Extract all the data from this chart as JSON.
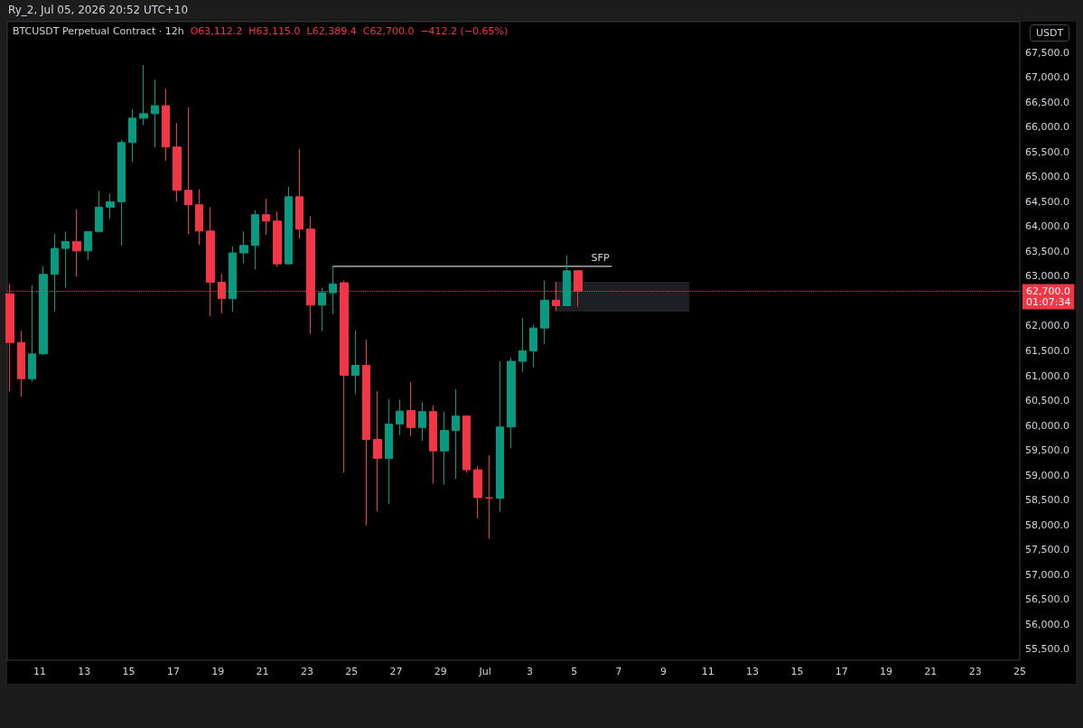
{
  "chart_data": {
    "type": "candlestick",
    "title": "Ry_2, Jul 05, 2026 20:52 UTC+10",
    "subtitle": "BTCUSDT Perpetual Contract · 12h",
    "ylabel": "USDT",
    "annotations": [
      "O63,112.2",
      "H63,115.0",
      "L62,389.4",
      "C62,700.0",
      "−412.2 (−0.65%)",
      {
        "text": "SFP",
        "x": "2026-07-06T04:00",
        "y": 63200
      }
    ],
    "x": [
      "2026-06-09T16:00",
      "2026-06-10T04:00",
      "2026-06-10T16:00",
      "2026-06-11T04:00",
      "2026-06-11T16:00",
      "2026-06-12T04:00",
      "2026-06-12T16:00",
      "2026-06-13T04:00",
      "2026-06-13T16:00",
      "2026-06-14T04:00",
      "2026-06-14T16:00",
      "2026-06-15T04:00",
      "2026-06-15T16:00",
      "2026-06-16T04:00",
      "2026-06-16T16:00",
      "2026-06-17T04:00",
      "2026-06-17T16:00",
      "2026-06-18T04:00",
      "2026-06-18T16:00",
      "2026-06-19T04:00",
      "2026-06-19T16:00",
      "2026-06-20T04:00",
      "2026-06-20T16:00",
      "2026-06-21T04:00",
      "2026-06-21T16:00",
      "2026-06-22T04:00",
      "2026-06-22T16:00",
      "2026-06-23T04:00",
      "2026-06-23T16:00",
      "2026-06-24T04:00",
      "2026-06-24T16:00",
      "2026-06-25T04:00",
      "2026-06-25T16:00",
      "2026-06-26T04:00",
      "2026-06-26T16:00",
      "2026-06-27T04:00",
      "2026-06-27T16:00",
      "2026-06-28T04:00",
      "2026-06-28T16:00",
      "2026-06-29T04:00",
      "2026-06-29T16:00",
      "2026-06-30T04:00",
      "2026-06-30T16:00",
      "2026-07-01T04:00",
      "2026-07-01T16:00",
      "2026-07-02T04:00",
      "2026-07-02T16:00",
      "2026-07-03T04:00",
      "2026-07-03T16:00",
      "2026-07-04T04:00",
      "2026-07-04T16:00",
      "2026-07-05T04:00"
    ],
    "ohlc": [
      [
        62650,
        62850,
        60690,
        61670
      ],
      [
        61670,
        61910,
        60580,
        60940
      ],
      [
        60940,
        62820,
        60880,
        61440
      ],
      [
        61440,
        63200,
        61420,
        63040
      ],
      [
        63040,
        63860,
        62290,
        63560
      ],
      [
        63560,
        63900,
        62770,
        63700
      ],
      [
        63700,
        64340,
        62990,
        63510
      ],
      [
        63510,
        63910,
        63330,
        63900
      ],
      [
        63900,
        64720,
        63880,
        64390
      ],
      [
        64390,
        64660,
        64150,
        64500
      ],
      [
        64500,
        65740,
        63620,
        65690
      ],
      [
        65690,
        66360,
        65300,
        66180
      ],
      [
        66180,
        67250,
        66040,
        66270
      ],
      [
        66270,
        66950,
        65590,
        66430
      ],
      [
        66430,
        66770,
        65320,
        65600
      ],
      [
        65600,
        66080,
        64500,
        64730
      ],
      [
        64730,
        66400,
        63850,
        64440
      ],
      [
        64440,
        64750,
        63630,
        63910
      ],
      [
        63910,
        64390,
        62200,
        62880
      ],
      [
        62880,
        63050,
        62250,
        62550
      ],
      [
        62550,
        63600,
        62290,
        63470
      ],
      [
        63470,
        63900,
        63260,
        63620
      ],
      [
        63620,
        64330,
        63140,
        64240
      ],
      [
        64240,
        64560,
        63830,
        64110
      ],
      [
        64110,
        64300,
        63190,
        63250
      ],
      [
        63250,
        64800,
        63250,
        64600
      ],
      [
        64600,
        65560,
        63760,
        63950
      ],
      [
        63950,
        64210,
        61840,
        62420
      ],
      [
        62420,
        62770,
        61900,
        62670
      ],
      [
        62670,
        63200,
        62240,
        62850
      ],
      [
        62870,
        62910,
        59050,
        61010
      ],
      [
        61010,
        61910,
        60630,
        61210
      ],
      [
        61210,
        61730,
        57990,
        59720
      ],
      [
        59720,
        60690,
        58270,
        59340
      ],
      [
        59340,
        60530,
        58420,
        60030
      ],
      [
        60030,
        60520,
        59810,
        60290
      ],
      [
        60300,
        60870,
        59780,
        59960
      ],
      [
        59960,
        60470,
        59690,
        60280
      ],
      [
        60280,
        60400,
        58830,
        59490
      ],
      [
        59490,
        60280,
        58810,
        59900
      ],
      [
        59900,
        60730,
        58930,
        60190
      ],
      [
        60190,
        60190,
        59050,
        59110
      ],
      [
        59110,
        59190,
        58130,
        58550
      ],
      [
        58550,
        59400,
        57720,
        58540
      ],
      [
        58540,
        61290,
        58270,
        59970
      ],
      [
        59970,
        61360,
        59540,
        61290
      ],
      [
        61290,
        62160,
        61080,
        61500
      ],
      [
        61500,
        62030,
        61170,
        61960
      ],
      [
        61960,
        62910,
        61640,
        62520
      ],
      [
        62520,
        62890,
        62300,
        62410
      ],
      [
        62410,
        63420,
        62400,
        63110
      ],
      [
        63112.2,
        63115.0,
        62389.4,
        62700.0
      ]
    ],
    "colors": [
      "#f23645",
      "#f23645",
      "#089981",
      "#089981",
      "#089981",
      "#089981",
      "#f23645",
      "#089981",
      "#089981",
      "#089981",
      "#089981",
      "#089981",
      "#089981",
      "#089981",
      "#f23645",
      "#f23645",
      "#f23645",
      "#f23645",
      "#f23645",
      "#f23645",
      "#089981",
      "#089981",
      "#089981",
      "#f23645",
      "#f23645",
      "#089981",
      "#f23645",
      "#f23645",
      "#089981",
      "#089981",
      "#f23645",
      "#089981",
      "#f23645",
      "#f23645",
      "#089981",
      "#089981",
      "#f23645",
      "#089981",
      "#f23645",
      "#089981",
      "#089981",
      "#f23645",
      "#f23645",
      "#f23645",
      "#089981",
      "#089981",
      "#089981",
      "#089981",
      "#089981",
      "#f23645",
      "#089981",
      "#f23645"
    ],
    "series": [
      {
        "type": "line",
        "x": [
          "2026-06-24T04:00",
          "2026-07-06T16:00"
        ],
        "values": [
          63200,
          63200
        ],
        "color": "#ffffff"
      },
      {
        "type": "line",
        "x": [
          "2026-07-04T04:00",
          "2026-07-10T04:00"
        ],
        "values": [
          null,
          null
        ],
        "lower": [
          62290,
          62290
        ],
        "upper": [
          62890,
          62890
        ],
        "color": "#1e1f24"
      }
    ],
    "ref_lines": [
      {
        "axis": "y",
        "value": 62700,
        "label": "62,700.0\n01:07:34",
        "color": "#f23645",
        "line_style": "dotted"
      }
    ],
    "xlim": [
      "2026-06-09T13:00",
      "2026-07-25T00:00"
    ],
    "xticks": [
      {
        "value": "2026-06-11",
        "label": "11"
      },
      {
        "value": "2026-06-13",
        "label": "13"
      },
      {
        "value": "2026-06-15",
        "label": "15"
      },
      {
        "value": "2026-06-17",
        "label": "17"
      },
      {
        "value": "2026-06-19",
        "label": "19"
      },
      {
        "value": "2026-06-21",
        "label": "21"
      },
      {
        "value": "2026-06-23",
        "label": "23"
      },
      {
        "value": "2026-06-25",
        "label": "25"
      },
      {
        "value": "2026-06-27",
        "label": "27"
      },
      {
        "value": "2026-06-29",
        "label": "29"
      },
      {
        "value": "2026-07-01",
        "label": "Jul"
      },
      {
        "value": "2026-07-03",
        "label": "3"
      },
      {
        "value": "2026-07-05",
        "label": "5"
      },
      {
        "value": "2026-07-07",
        "label": "7"
      },
      {
        "value": "2026-07-09",
        "label": "9"
      },
      {
        "value": "2026-07-11",
        "label": "11"
      },
      {
        "value": "2026-07-13",
        "label": "13"
      },
      {
        "value": "2026-07-15",
        "label": "15"
      },
      {
        "value": "2026-07-17",
        "label": "17"
      },
      {
        "value": "2026-07-19",
        "label": "19"
      },
      {
        "value": "2026-07-21",
        "label": "21"
      },
      {
        "value": "2026-07-23",
        "label": "23"
      },
      {
        "value": "2026-07-25",
        "label": "25"
      }
    ],
    "ylim": [
      55280,
      68120
    ],
    "yticks": [
      {
        "value": 55500,
        "label": "55,500.0"
      },
      {
        "value": 56000,
        "label": "56,000.0"
      },
      {
        "value": 56500,
        "label": "56,500.0"
      },
      {
        "value": 57000,
        "label": "57,000.0"
      },
      {
        "value": 57500,
        "label": "57,500.0"
      },
      {
        "value": 58000,
        "label": "58,000.0"
      },
      {
        "value": 58500,
        "label": "58,500.0"
      },
      {
        "value": 59000,
        "label": "59,000.0"
      },
      {
        "value": 59500,
        "label": "59,500.0"
      },
      {
        "value": 60000,
        "label": "60,000.0"
      },
      {
        "value": 60500,
        "label": "60,500.0"
      },
      {
        "value": 61000,
        "label": "61,000.0"
      },
      {
        "value": 61500,
        "label": "61,500.0"
      },
      {
        "value": 62000,
        "label": "62,000.0"
      },
      {
        "value": 63000,
        "label": "63,000.0"
      },
      {
        "value": 63500,
        "label": "63,500.0"
      },
      {
        "value": 64000,
        "label": "64,000.0"
      },
      {
        "value": 64500,
        "label": "64,500.0"
      },
      {
        "value": 65000,
        "label": "65,000.0"
      },
      {
        "value": 65500,
        "label": "65,500.0"
      },
      {
        "value": 66000,
        "label": "66,000.0"
      },
      {
        "value": 66500,
        "label": "66,500.0"
      },
      {
        "value": 67000,
        "label": "67,000.0"
      },
      {
        "value": 67500,
        "label": "67,500.0"
      }
    ],
    "grid": false
  }
}
